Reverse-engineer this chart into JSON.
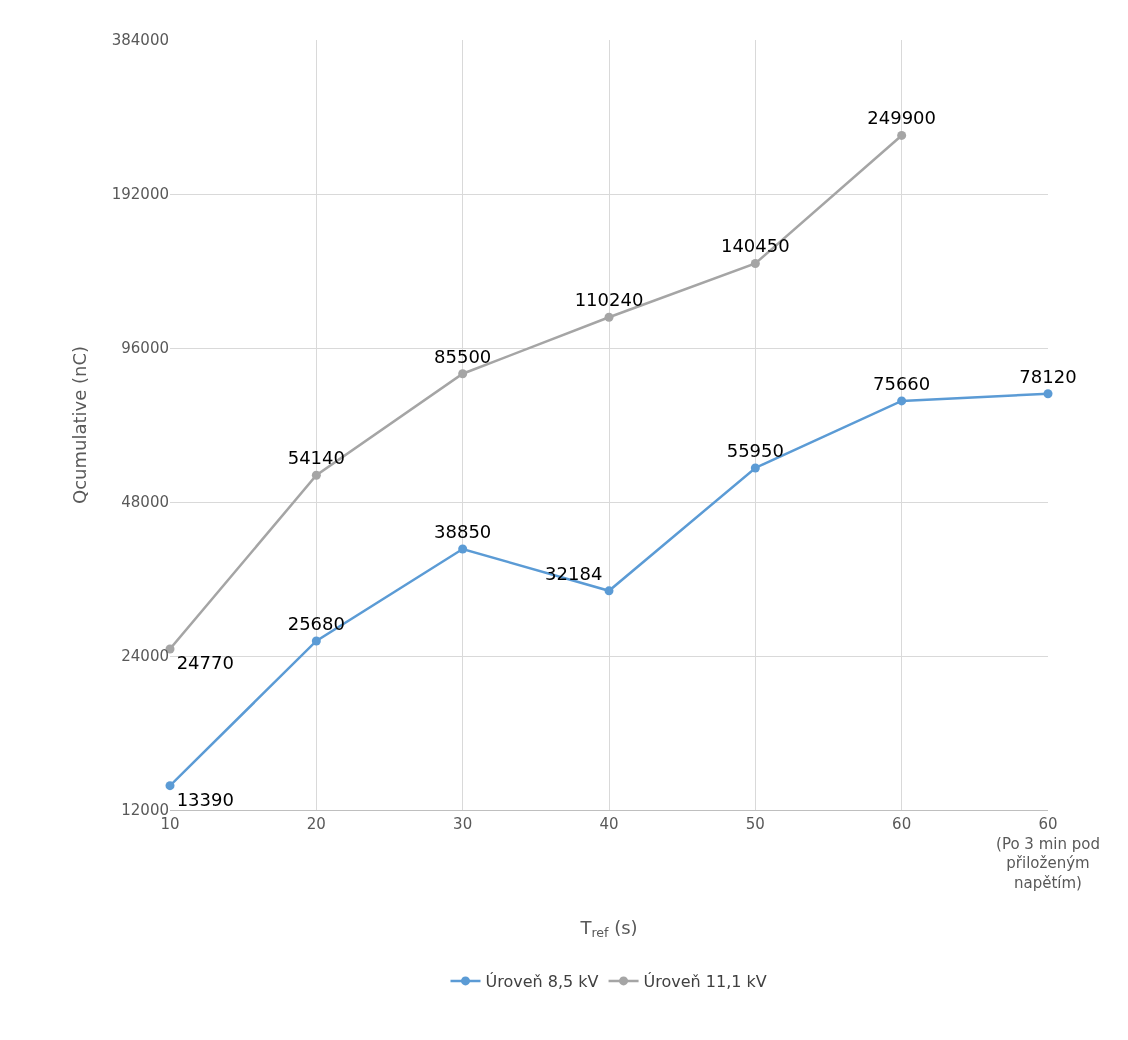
{
  "chart_data": {
    "type": "line",
    "xlabel": "T$_{ref}$ (s)",
    "ylabel": "Qcumulative (nC)",
    "categories": [
      "10",
      "20",
      "30",
      "40",
      "50",
      "60",
      "60 (Po 3 min pod přiloženým napětím)"
    ],
    "series": [
      {
        "name": "Úroveň 8,5 kV",
        "color": "#5b9bd5",
        "values": [
          13390,
          25680,
          38850,
          32184,
          55950,
          75660,
          78120
        ]
      },
      {
        "name": "Úroveň 11,1 kV",
        "color": "#a5a5a5",
        "values": [
          24770,
          54140,
          85500,
          110240,
          140450,
          249900,
          null
        ]
      }
    ],
    "log": true,
    "ylim": [
      12000,
      384000
    ],
    "yticks": [
      12000,
      24000,
      48000,
      96000,
      192000,
      384000
    ],
    "grid": true,
    "legend": "bottom",
    "marker": "circle",
    "line_style": "solid",
    "data_labels": true
  }
}
